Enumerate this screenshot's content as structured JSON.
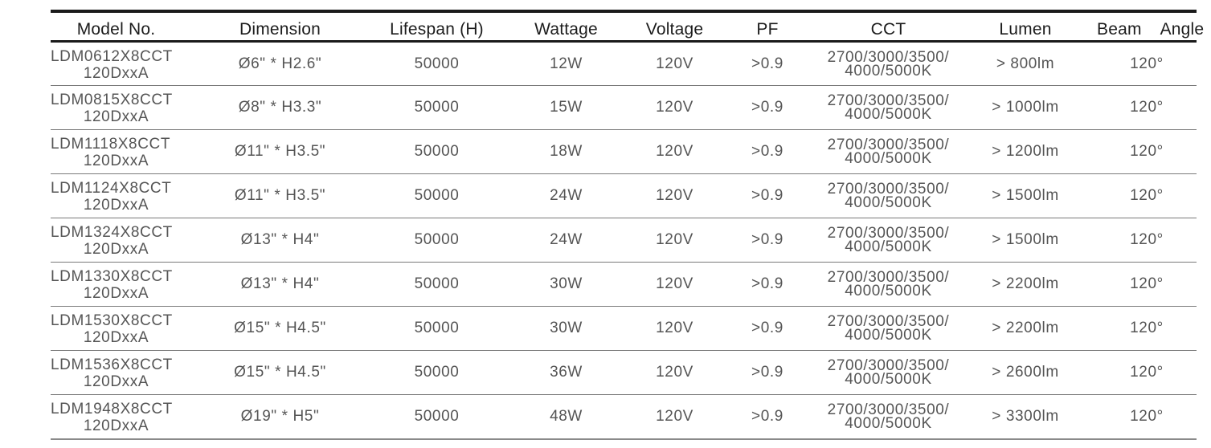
{
  "headers": {
    "model": "Model No.",
    "dimension": "Dimension",
    "lifespan": "Lifespan (H)",
    "wattage": "Wattage",
    "voltage": "Voltage",
    "pf": "PF",
    "cct": "CCT",
    "lumen": "Lumen",
    "beam": "Beam  Angle"
  },
  "rows": [
    {
      "model_l1": "LDM0612X8CCT",
      "model_l2": "120DxxA",
      "dimension": "Ø6\" * H2.6\"",
      "lifespan": "50000",
      "wattage": "12W",
      "voltage": "120V",
      "pf": ">0.9",
      "cct_l1": "2700/3000/3500/",
      "cct_l2": "4000/5000K",
      "lumen": "> 800lm",
      "beam": "120°"
    },
    {
      "model_l1": "LDM0815X8CCT",
      "model_l2": "120DxxA",
      "dimension": "Ø8\" * H3.3\"",
      "lifespan": "50000",
      "wattage": "15W",
      "voltage": "120V",
      "pf": ">0.9",
      "cct_l1": "2700/3000/3500/",
      "cct_l2": "4000/5000K",
      "lumen": "> 1000lm",
      "beam": "120°"
    },
    {
      "model_l1": "LDM1118X8CCT",
      "model_l2": "120DxxA",
      "dimension": "Ø11\" * H3.5\"",
      "lifespan": "50000",
      "wattage": "18W",
      "voltage": "120V",
      "pf": ">0.9",
      "cct_l1": "2700/3000/3500/",
      "cct_l2": "4000/5000K",
      "lumen": "> 1200lm",
      "beam": "120°"
    },
    {
      "model_l1": "LDM1124X8CCT",
      "model_l2": "120DxxA",
      "dimension": "Ø11\" * H3.5\"",
      "lifespan": "50000",
      "wattage": "24W",
      "voltage": "120V",
      "pf": ">0.9",
      "cct_l1": "2700/3000/3500/",
      "cct_l2": "4000/5000K",
      "lumen": "> 1500lm",
      "beam": "120°"
    },
    {
      "model_l1": "LDM1324X8CCT",
      "model_l2": "120DxxA",
      "dimension": "Ø13\" * H4\"",
      "lifespan": "50000",
      "wattage": "24W",
      "voltage": "120V",
      "pf": ">0.9",
      "cct_l1": "2700/3000/3500/",
      "cct_l2": "4000/5000K",
      "lumen": "> 1500lm",
      "beam": "120°"
    },
    {
      "model_l1": "LDM1330X8CCT",
      "model_l2": "120DxxA",
      "dimension": "Ø13\" * H4\"",
      "lifespan": "50000",
      "wattage": "30W",
      "voltage": "120V",
      "pf": ">0.9",
      "cct_l1": "2700/3000/3500/",
      "cct_l2": "4000/5000K",
      "lumen": "> 2200lm",
      "beam": "120°"
    },
    {
      "model_l1": "LDM1530X8CCT",
      "model_l2": "120DxxA",
      "dimension": "Ø15\" * H4.5\"",
      "lifespan": "50000",
      "wattage": "30W",
      "voltage": "120V",
      "pf": ">0.9",
      "cct_l1": "2700/3000/3500/",
      "cct_l2": "4000/5000K",
      "lumen": "> 2200lm",
      "beam": "120°"
    },
    {
      "model_l1": "LDM1536X8CCT",
      "model_l2": "120DxxA",
      "dimension": "Ø15\" * H4.5\"",
      "lifespan": "50000",
      "wattage": "36W",
      "voltage": "120V",
      "pf": ">0.9",
      "cct_l1": "2700/3000/3500/",
      "cct_l2": "4000/5000K",
      "lumen": "> 2600lm",
      "beam": "120°"
    },
    {
      "model_l1": "LDM1948X8CCT",
      "model_l2": "120DxxA",
      "dimension": "Ø19\" * H5\"",
      "lifespan": "50000",
      "wattage": "48W",
      "voltage": "120V",
      "pf": ">0.9",
      "cct_l1": "2700/3000/3500/",
      "cct_l2": "4000/5000K",
      "lumen": "> 3300lm",
      "beam": "120°"
    }
  ]
}
